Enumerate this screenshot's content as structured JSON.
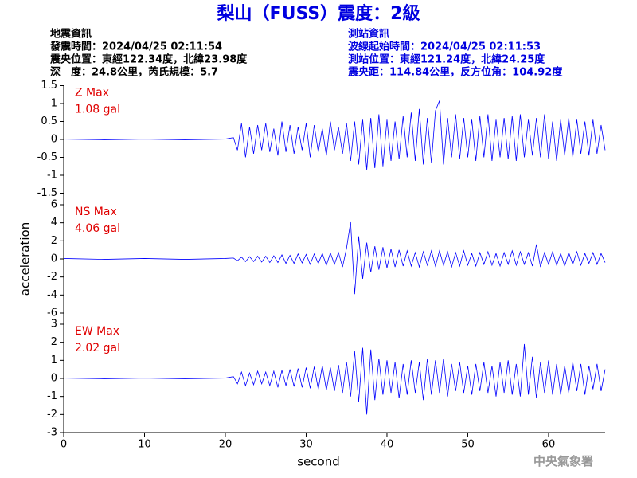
{
  "header": {
    "title": "梨山（FUSS）震度：2級",
    "left": [
      "地震資訊",
      "發震時間：2024/04/25 02:11:54",
      "震央位置：東經122.34度，北緯23.98度",
      "深　度：24.8公里，芮氏規模：5.7"
    ],
    "right": [
      "測站資訊",
      "波線起始時間：2024/04/25 02:11:53",
      "測站位置：東經121.24度，北緯24.25度",
      "震央距：114.84公里，反方位角：104.92度"
    ]
  },
  "footer": "中央氣象署",
  "chart_data": [
    {
      "type": "line",
      "color": "#0000ff",
      "label_color": "#e00000",
      "annotations": [
        "Z Max",
        "1.08 gal"
      ],
      "xlim": [
        0,
        67
      ],
      "ylim": [
        -1.5,
        1.5
      ],
      "yticks": [
        -1.5,
        -1,
        -0.5,
        0,
        0.5,
        1,
        1.5
      ],
      "x": [
        0,
        5,
        10,
        15,
        20,
        21,
        21.5,
        22,
        22.5,
        23,
        23.5,
        24,
        24.5,
        25,
        25.5,
        26,
        26.5,
        27,
        27.5,
        28,
        28.5,
        29,
        29.5,
        30,
        30.5,
        31,
        31.5,
        32,
        32.5,
        33,
        33.5,
        34,
        34.5,
        35,
        35.5,
        36,
        36.5,
        37,
        37.5,
        38,
        38.5,
        39,
        39.5,
        40,
        40.5,
        41,
        41.5,
        42,
        42.5,
        43,
        43.5,
        44,
        44.5,
        45,
        45.5,
        46,
        46.5,
        47,
        47.5,
        48,
        48.5,
        49,
        49.5,
        50,
        50.5,
        51,
        51.5,
        52,
        52.5,
        53,
        53.5,
        54,
        54.5,
        55,
        55.5,
        56,
        56.5,
        57,
        57.5,
        58,
        58.5,
        59,
        59.5,
        60,
        60.5,
        61,
        61.5,
        62,
        62.5,
        63,
        63.5,
        64,
        64.5,
        65,
        65.5,
        66,
        66.5,
        67
      ],
      "values": [
        0.01,
        -0.01,
        0.01,
        -0.01,
        0.01,
        0.05,
        -0.3,
        0.45,
        -0.5,
        0.35,
        -0.4,
        0.4,
        -0.3,
        0.45,
        -0.35,
        0.3,
        -0.45,
        0.5,
        -0.35,
        0.4,
        -0.4,
        0.35,
        -0.3,
        0.45,
        -0.5,
        0.4,
        -0.35,
        0.3,
        -0.45,
        0.5,
        -0.3,
        0.35,
        -0.4,
        0.45,
        -0.6,
        0.5,
        -0.7,
        0.55,
        -0.85,
        0.6,
        -0.8,
        0.7,
        -0.75,
        0.55,
        -0.6,
        0.5,
        -0.55,
        0.65,
        -0.5,
        0.75,
        -0.6,
        0.85,
        -0.7,
        0.6,
        -0.65,
        0.8,
        1.08,
        -0.7,
        0.6,
        -0.5,
        0.7,
        -0.55,
        0.6,
        -0.5,
        0.55,
        -0.6,
        0.65,
        -0.5,
        0.7,
        -0.6,
        0.55,
        -0.5,
        0.6,
        -0.55,
        0.65,
        -0.6,
        0.7,
        -0.5,
        0.55,
        -0.45,
        0.6,
        -0.5,
        0.7,
        -0.55,
        0.5,
        -0.6,
        0.55,
        -0.45,
        0.6,
        -0.5,
        0.55,
        -0.4,
        0.5,
        -0.45,
        0.55,
        -0.4,
        0.4,
        -0.3
      ]
    },
    {
      "type": "line",
      "color": "#0000ff",
      "label_color": "#e00000",
      "annotations": [
        "NS Max",
        "4.06 gal"
      ],
      "y_label": "acceleration",
      "xlim": [
        0,
        67
      ],
      "ylim": [
        -6,
        6
      ],
      "yticks": [
        -6,
        -4,
        -2,
        0,
        2,
        4,
        6
      ],
      "x": [
        0,
        5,
        10,
        15,
        20,
        21,
        21.5,
        22,
        22.5,
        23,
        23.5,
        24,
        24.5,
        25,
        25.5,
        26,
        26.5,
        27,
        27.5,
        28,
        28.5,
        29,
        29.5,
        30,
        30.5,
        31,
        31.5,
        32,
        32.5,
        33,
        33.5,
        34,
        34.5,
        35,
        35.5,
        36,
        36.5,
        37,
        37.5,
        38,
        38.5,
        39,
        39.5,
        40,
        40.5,
        41,
        41.5,
        42,
        42.5,
        43,
        43.5,
        44,
        44.5,
        45,
        45.5,
        46,
        46.5,
        47,
        47.5,
        48,
        48.5,
        49,
        49.5,
        50,
        50.5,
        51,
        51.5,
        52,
        52.5,
        53,
        53.5,
        54,
        54.5,
        55,
        55.5,
        56,
        56.5,
        57,
        57.5,
        58,
        58.5,
        59,
        59.5,
        60,
        60.5,
        61,
        61.5,
        62,
        62.5,
        63,
        63.5,
        64,
        64.5,
        65,
        65.5,
        66,
        66.5,
        67
      ],
      "values": [
        0.05,
        -0.05,
        0.05,
        -0.05,
        0.05,
        0.1,
        -0.2,
        0.2,
        -0.3,
        0.25,
        -0.3,
        0.3,
        -0.35,
        0.3,
        -0.4,
        0.35,
        -0.4,
        0.45,
        -0.5,
        0.4,
        -0.5,
        0.55,
        -0.45,
        0.5,
        -0.6,
        0.55,
        -0.5,
        0.6,
        -0.7,
        0.65,
        -0.6,
        0.7,
        -0.9,
        1.2,
        4.06,
        -3.9,
        2.5,
        -2.2,
        1.8,
        -1.5,
        1.4,
        -1.2,
        1.3,
        -1.0,
        1.1,
        -0.9,
        1.0,
        -0.8,
        0.9,
        -0.8,
        0.7,
        -0.9,
        0.8,
        -0.7,
        0.9,
        -0.8,
        0.9,
        -0.7,
        0.8,
        -0.9,
        0.7,
        -0.8,
        0.9,
        -0.7,
        0.6,
        -0.8,
        0.7,
        -0.6,
        0.8,
        -0.7,
        0.6,
        -0.8,
        0.7,
        -0.6,
        0.9,
        -0.7,
        0.8,
        -0.6,
        0.7,
        -0.8,
        1.6,
        -0.9,
        0.7,
        -0.6,
        0.8,
        -0.7,
        0.6,
        -0.8,
        0.7,
        -0.6,
        0.8,
        -0.7,
        0.6,
        -0.5,
        0.7,
        -0.6,
        0.6,
        -0.4
      ]
    },
    {
      "type": "line",
      "color": "#0000ff",
      "label_color": "#e00000",
      "annotations": [
        "EW Max",
        "2.02 gal"
      ],
      "x_label": "second",
      "xlim": [
        0,
        67
      ],
      "ylim": [
        -3,
        3
      ],
      "yticks": [
        -3,
        -2,
        -1,
        0,
        1,
        2,
        3
      ],
      "xticks": [
        0,
        10,
        20,
        30,
        40,
        50,
        60
      ],
      "x": [
        0,
        5,
        10,
        15,
        20,
        21,
        21.5,
        22,
        22.5,
        23,
        23.5,
        24,
        24.5,
        25,
        25.5,
        26,
        26.5,
        27,
        27.5,
        28,
        28.5,
        29,
        29.5,
        30,
        30.5,
        31,
        31.5,
        32,
        32.5,
        33,
        33.5,
        34,
        34.5,
        35,
        35.5,
        36,
        36.5,
        37,
        37.5,
        38,
        38.5,
        39,
        39.5,
        40,
        40.5,
        41,
        41.5,
        42,
        42.5,
        43,
        43.5,
        44,
        44.5,
        45,
        45.5,
        46,
        46.5,
        47,
        47.5,
        48,
        48.5,
        49,
        49.5,
        50,
        50.5,
        51,
        51.5,
        52,
        52.5,
        53,
        53.5,
        54,
        54.5,
        55,
        55.5,
        56,
        56.5,
        57,
        57.5,
        58,
        58.5,
        59,
        59.5,
        60,
        60.5,
        61,
        61.5,
        62,
        62.5,
        63,
        63.5,
        64,
        64.5,
        65,
        65.5,
        66,
        66.5,
        67
      ],
      "values": [
        0.02,
        -0.02,
        0.02,
        -0.02,
        0.02,
        0.1,
        -0.3,
        0.35,
        -0.4,
        0.3,
        -0.35,
        0.4,
        -0.3,
        0.35,
        -0.4,
        0.4,
        -0.5,
        0.45,
        -0.4,
        0.5,
        -0.45,
        0.55,
        -0.5,
        0.6,
        -0.55,
        0.65,
        -0.6,
        0.7,
        -0.65,
        0.6,
        -0.7,
        0.75,
        -0.8,
        0.9,
        -1.0,
        1.5,
        -1.3,
        1.7,
        -2.0,
        1.6,
        -1.2,
        1.1,
        -0.9,
        1.0,
        -0.8,
        0.9,
        -1.1,
        0.8,
        -0.9,
        1.0,
        -0.8,
        0.9,
        -1.2,
        1.1,
        -0.9,
        1.0,
        -0.8,
        1.1,
        -1.0,
        0.8,
        -0.7,
        0.9,
        -0.8,
        0.7,
        -0.9,
        0.8,
        -0.7,
        0.9,
        -0.8,
        0.7,
        -1.0,
        0.9,
        -0.8,
        1.0,
        -0.9,
        0.8,
        -1.0,
        1.9,
        -0.9,
        1.2,
        -1.1,
        0.9,
        -0.8,
        1.0,
        -0.9,
        0.8,
        -0.9,
        0.7,
        -0.8,
        0.9,
        -0.7,
        0.8,
        -0.9,
        0.7,
        -0.6,
        0.8,
        -0.7,
        0.5
      ]
    }
  ]
}
